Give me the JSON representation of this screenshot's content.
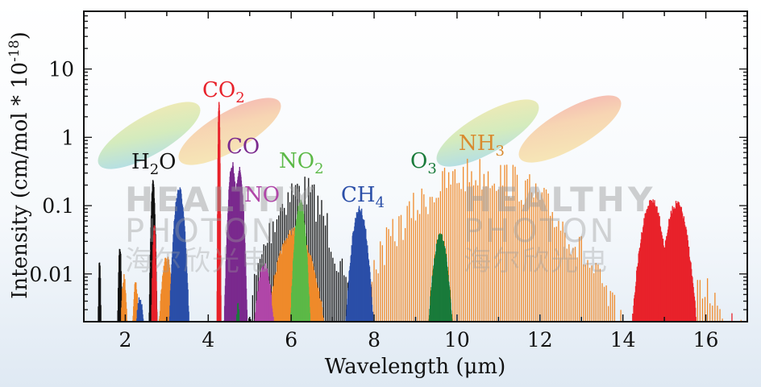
{
  "chart_data": {
    "type": "line",
    "style": "absorption line spectra, log y-axis",
    "xlabel": "Wavelength (μm)",
    "ylabel": {
      "main": "Intensity (cm/mol * 10",
      "sup": "-18",
      "end": ")"
    },
    "xlim": [
      1,
      17
    ],
    "ylim": [
      0.002,
      70
    ],
    "yscale": "log",
    "xticks": [
      2,
      4,
      6,
      8,
      10,
      12,
      14,
      16
    ],
    "xtick_labels": [
      "2",
      "4",
      "6",
      "8",
      "10",
      "12",
      "14",
      "16"
    ],
    "yticks": [
      0.01,
      0.1,
      1,
      10
    ],
    "ytick_labels": [
      "0.01",
      "0.1",
      "1",
      "10"
    ],
    "grid": false,
    "series": [
      {
        "name": "H2O",
        "label": {
          "pre": "H",
          "sub": "2",
          "post": "O"
        },
        "color": "#111111",
        "bands": [
          {
            "center_um": 1.38,
            "halfwidth_um": 0.04,
            "peak": 0.018,
            "spacing_um": 0.01
          },
          {
            "center_um": 1.87,
            "halfwidth_um": 0.06,
            "peak": 0.028,
            "spacing_um": 0.01
          },
          {
            "center_um": 2.67,
            "halfwidth_um": 0.1,
            "peak": 0.25,
            "spacing_um": 0.008
          },
          {
            "center_um": 6.2,
            "halfwidth_um": 1.4,
            "peak": 0.32,
            "spacing_um": 0.045
          }
        ]
      },
      {
        "name": "NH3",
        "label": {
          "pre": "NH",
          "sub": "3",
          "post": ""
        },
        "color": "#ef8a2b",
        "bands": [
          {
            "center_um": 1.5,
            "halfwidth_um": 0.02,
            "peak": 0.004,
            "spacing_um": 0.02
          },
          {
            "center_um": 1.97,
            "halfwidth_um": 0.08,
            "peak": 0.01,
            "spacing_um": 0.01
          },
          {
            "center_um": 2.25,
            "halfwidth_um": 0.08,
            "peak": 0.008,
            "spacing_um": 0.01
          },
          {
            "center_um": 3.0,
            "halfwidth_um": 0.2,
            "peak": 0.02,
            "spacing_um": 0.01
          },
          {
            "center_um": 6.1,
            "halfwidth_um": 0.75,
            "peak": 0.05,
            "spacing_um": 0.015
          },
          {
            "center_um": 10.6,
            "halfwidth_um": 3.6,
            "peak": 0.55,
            "spacing_um": 0.05
          },
          {
            "center_um": 16.0,
            "halfwidth_um": 0.5,
            "peak": 0.012,
            "spacing_um": 0.06
          },
          {
            "center_um": 16.85,
            "halfwidth_um": 0.1,
            "peak": 0.004,
            "spacing_um": 0.05
          }
        ]
      },
      {
        "name": "CH4",
        "label": {
          "pre": "CH",
          "sub": "4",
          "post": ""
        },
        "color": "#2b4fa8",
        "bands": [
          {
            "center_um": 2.35,
            "halfwidth_um": 0.1,
            "peak": 0.005,
            "spacing_um": 0.01
          },
          {
            "center_um": 3.3,
            "halfwidth_um": 0.25,
            "peak": 0.2,
            "spacing_um": 0.01
          },
          {
            "center_um": 7.65,
            "halfwidth_um": 0.35,
            "peak": 0.1,
            "spacing_um": 0.01
          }
        ]
      },
      {
        "name": "CO2",
        "label": {
          "pre": "CO",
          "sub": "2",
          "post": ""
        },
        "color": "#e8222b",
        "bands": [
          {
            "center_um": 2.7,
            "halfwidth_um": 0.07,
            "peak": 0.06,
            "spacing_um": 0.01
          },
          {
            "center_um": 4.26,
            "halfwidth_um": 0.05,
            "peak": 3.5,
            "spacing_um": 0.005
          },
          {
            "center_um": 14.7,
            "halfwidth_um": 0.5,
            "peak": 0.13,
            "spacing_um": 0.012
          },
          {
            "center_um": 15.3,
            "halfwidth_um": 0.5,
            "peak": 0.12,
            "spacing_um": 0.012
          },
          {
            "center_um": 14.97,
            "halfwidth_um": 0.02,
            "peak": 0.3,
            "spacing_um": 0.04
          },
          {
            "center_um": 16.6,
            "halfwidth_um": 0.12,
            "peak": 0.003,
            "spacing_um": 0.03
          }
        ]
      },
      {
        "name": "CO",
        "label": {
          "pre": "CO",
          "sub": "",
          "post": ""
        },
        "color": "#7b2a8e",
        "bands": [
          {
            "center_um": 4.58,
            "halfwidth_um": 0.2,
            "peak": 0.45,
            "spacing_um": 0.008
          },
          {
            "center_um": 4.75,
            "halfwidth_um": 0.2,
            "peak": 0.38,
            "spacing_um": 0.008
          }
        ]
      },
      {
        "name": "NO",
        "label": {
          "pre": "NO",
          "sub": "",
          "post": ""
        },
        "color": "#b046a8",
        "bands": [
          {
            "center_um": 5.35,
            "halfwidth_um": 0.25,
            "peak": 0.015,
            "spacing_um": 0.01
          }
        ]
      },
      {
        "name": "NO2",
        "label": {
          "pre": "NO",
          "sub": "2",
          "post": ""
        },
        "color": "#5cb947",
        "bands": [
          {
            "center_um": 6.22,
            "halfwidth_um": 0.25,
            "peak": 0.13,
            "spacing_um": 0.008
          }
        ]
      },
      {
        "name": "O3",
        "label": {
          "pre": "O",
          "sub": "3",
          "post": ""
        },
        "color": "#1a7b3b",
        "bands": [
          {
            "center_um": 4.72,
            "halfwidth_um": 0.05,
            "peak": 0.004,
            "spacing_um": 0.01
          },
          {
            "center_um": 9.6,
            "halfwidth_um": 0.3,
            "peak": 0.04,
            "spacing_um": 0.006
          }
        ]
      }
    ]
  },
  "watermark": {
    "line1": "HEALTHY",
    "line2": "PHOTON",
    "line3": "海尔欣光电"
  }
}
